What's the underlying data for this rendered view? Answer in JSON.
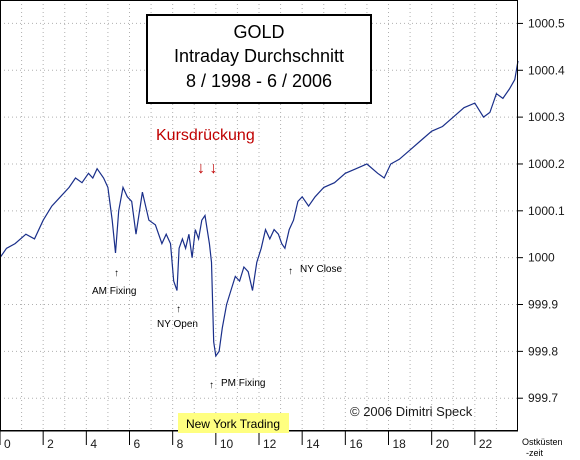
{
  "chart_data": {
    "type": "line",
    "title_lines": [
      "GOLD",
      "Intraday Durchschnitt",
      "8 / 1998 - 6 / 2006"
    ],
    "xlabel": "Ostküsten -zeit",
    "ylabel": "",
    "xlim": [
      0,
      24
    ],
    "ylim": [
      999.63,
      1000.55
    ],
    "x_ticks": [
      "0",
      "2",
      "4",
      "6",
      "8",
      "10",
      "12",
      "14",
      "16",
      "18",
      "20",
      "22"
    ],
    "y_ticks": [
      "1000.5",
      "1000.4",
      "1000.3",
      "1000.2",
      "1000.1",
      "1000",
      "999.9",
      "999.8",
      "999.7"
    ],
    "grid": "dotted",
    "series": [
      {
        "color": "#1a2f8a",
        "x": [
          0,
          0.3,
          0.7,
          1.2,
          1.6,
          2.0,
          2.4,
          2.8,
          3.2,
          3.5,
          3.8,
          4.1,
          4.3,
          4.5,
          4.8,
          5.0,
          5.2,
          5.35,
          5.5,
          5.7,
          5.9,
          6.1,
          6.3,
          6.6,
          6.9,
          7.2,
          7.5,
          7.7,
          7.9,
          8.05,
          8.2,
          8.3,
          8.45,
          8.6,
          8.75,
          8.9,
          9.05,
          9.2,
          9.35,
          9.5,
          9.6,
          9.7,
          9.8,
          9.9,
          10.0,
          10.15,
          10.3,
          10.5,
          10.7,
          10.9,
          11.1,
          11.3,
          11.5,
          11.7,
          11.9,
          12.1,
          12.3,
          12.5,
          12.7,
          12.9,
          13.05,
          13.2,
          13.4,
          13.6,
          13.8,
          14.0,
          14.3,
          14.6,
          15.0,
          15.5,
          16.0,
          16.5,
          17.0,
          17.5,
          17.8,
          18.1,
          18.5,
          19.0,
          19.5,
          20.0,
          20.5,
          21.0,
          21.5,
          22.0,
          22.4,
          22.7,
          23.0,
          23.3,
          23.6,
          23.85,
          24.0
        ],
        "values": [
          1000.0,
          1000.02,
          1000.03,
          1000.05,
          1000.04,
          1000.08,
          1000.11,
          1000.13,
          1000.15,
          1000.17,
          1000.16,
          1000.18,
          1000.17,
          1000.19,
          1000.17,
          1000.15,
          1000.08,
          1000.01,
          1000.1,
          1000.15,
          1000.13,
          1000.12,
          1000.05,
          1000.14,
          1000.08,
          1000.07,
          1000.03,
          1000.05,
          1000.03,
          999.95,
          999.93,
          1000.02,
          1000.04,
          1000.02,
          1000.05,
          1000.0,
          1000.06,
          1000.04,
          1000.08,
          1000.09,
          1000.06,
          1000.03,
          999.99,
          999.82,
          999.79,
          999.8,
          999.85,
          999.9,
          999.93,
          999.96,
          999.95,
          999.98,
          999.97,
          999.93,
          999.99,
          1000.02,
          1000.06,
          1000.04,
          1000.06,
          1000.05,
          1000.03,
          1000.02,
          1000.06,
          1000.08,
          1000.12,
          1000.13,
          1000.11,
          1000.13,
          1000.15,
          1000.16,
          1000.18,
          1000.19,
          1000.2,
          1000.18,
          1000.17,
          1000.2,
          1000.21,
          1000.23,
          1000.25,
          1000.27,
          1000.28,
          1000.3,
          1000.32,
          1000.33,
          1000.3,
          1000.31,
          1000.35,
          1000.34,
          1000.36,
          1000.38,
          1000.42
        ]
      }
    ],
    "annotations": {
      "kurs_label": "Kursdrückung",
      "kurs_arrows": "↓ ↓",
      "am_fixing": "AM Fixing",
      "ny_open": "NY Open",
      "pm_fixing": "PM Fixing",
      "ny_close": "NY Close",
      "ny_trading": "New York Trading",
      "copyright": "© 2006 Dimitri Speck"
    },
    "colors": {
      "line": "#1a2f8a",
      "kurs": "#c00000",
      "highlight": "#ffff80",
      "grid": "#b0b0b0"
    }
  }
}
